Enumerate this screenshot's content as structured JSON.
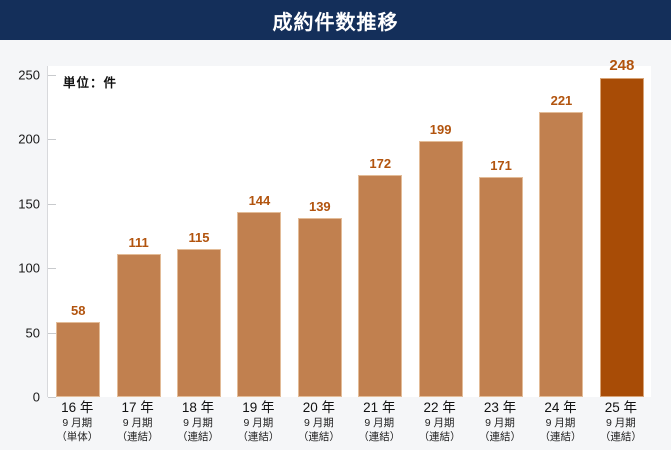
{
  "header": {
    "title": "成約件数推移"
  },
  "chart_data": {
    "type": "bar",
    "title": "成約件数推移",
    "unit_label": "単位：件",
    "categories": [
      {
        "year": "16 年",
        "period": "9 月期",
        "note": "（単体）"
      },
      {
        "year": "17 年",
        "period": "9 月期",
        "note": "（連結）"
      },
      {
        "year": "18 年",
        "period": "9 月期",
        "note": "（連結）"
      },
      {
        "year": "19 年",
        "period": "9 月期",
        "note": "（連結）"
      },
      {
        "year": "20 年",
        "period": "9 月期",
        "note": "（連結）"
      },
      {
        "year": "21 年",
        "period": "9 月期",
        "note": "（連結）"
      },
      {
        "year": "22 年",
        "period": "9 月期",
        "note": "（連結）"
      },
      {
        "year": "23 年",
        "period": "9 月期",
        "note": "（連結）"
      },
      {
        "year": "24 年",
        "period": "9 月期",
        "note": "（連結）"
      },
      {
        "year": "25 年",
        "period": "9 月期",
        "note": "（連結）"
      }
    ],
    "values": [
      58,
      111,
      115,
      144,
      139,
      172,
      199,
      171,
      221,
      248
    ],
    "highlight_index": 9,
    "ylim": [
      0,
      250
    ],
    "yticks": [
      0,
      50,
      100,
      150,
      200,
      250
    ],
    "grid": false,
    "legend": "none",
    "colors": {
      "header_bg": "#142f5a",
      "page_bg": "#f5f6f8",
      "plot_bg": "#ffffff",
      "bar": "#c1804f",
      "bar_highlight": "#a84c06",
      "value_label": "#b2540e",
      "axis_text": "#1a1a1a"
    }
  }
}
